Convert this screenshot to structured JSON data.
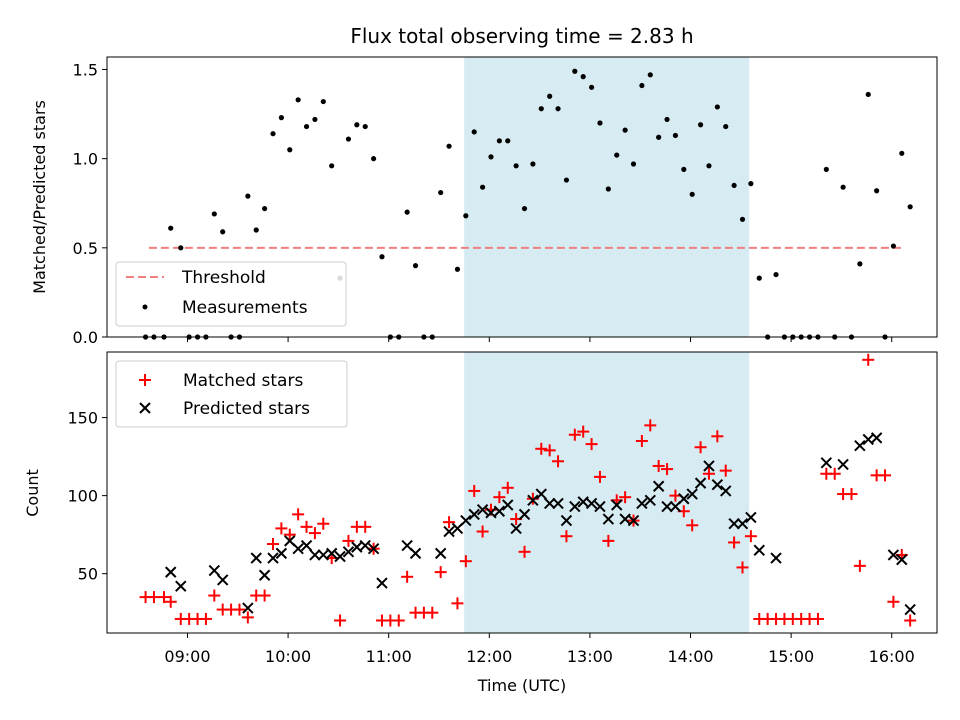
{
  "chart_data": [
    {
      "type": "scatter",
      "title": "Flux total observing time = 2.83 h",
      "xlabel": "",
      "ylabel": "Matched/Predicted stars",
      "ylim": [
        0,
        1.57
      ],
      "yticks": [
        0.0,
        0.5,
        1.0,
        1.5
      ],
      "ytick_labels": [
        "0.0",
        "0.5",
        "1.0",
        "1.5"
      ],
      "xlim": [
        "08:12",
        "16:27"
      ],
      "xticks": [
        "09:00",
        "10:00",
        "11:00",
        "12:00",
        "13:00",
        "14:00",
        "15:00",
        "16:00"
      ],
      "shaded_interval": [
        "11:45",
        "14:35"
      ],
      "threshold": {
        "name": "Threshold",
        "value": 0.5,
        "x_range": [
          "08:37",
          "16:07"
        ],
        "color": "#f08080"
      },
      "legend_placement": "bottom-left",
      "series": [
        {
          "name": "Measurements",
          "color": "#000000",
          "points": [
            [
              "08:35",
              0.0
            ],
            [
              "08:40",
              0.0
            ],
            [
              "08:46",
              0.0
            ],
            [
              "08:50",
              0.61
            ],
            [
              "08:56",
              0.5
            ],
            [
              "09:01",
              0.0
            ],
            [
              "09:06",
              0.0
            ],
            [
              "09:11",
              0.0
            ],
            [
              "09:16",
              0.69
            ],
            [
              "09:21",
              0.59
            ],
            [
              "09:26",
              0.0
            ],
            [
              "09:31",
              0.0
            ],
            [
              "09:36",
              0.79
            ],
            [
              "09:41",
              0.6
            ],
            [
              "09:46",
              0.72
            ],
            [
              "09:51",
              1.14
            ],
            [
              "09:56",
              1.23
            ],
            [
              "10:01",
              1.05
            ],
            [
              "10:06",
              1.33
            ],
            [
              "10:11",
              1.18
            ],
            [
              "10:16",
              1.22
            ],
            [
              "10:21",
              1.32
            ],
            [
              "10:26",
              0.96
            ],
            [
              "10:31",
              0.33
            ],
            [
              "10:36",
              1.11
            ],
            [
              "10:41",
              1.19
            ],
            [
              "10:46",
              1.18
            ],
            [
              "10:51",
              1.0
            ],
            [
              "10:56",
              0.45
            ],
            [
              "11:01",
              0.0
            ],
            [
              "11:06",
              0.0
            ],
            [
              "11:11",
              0.7
            ],
            [
              "11:16",
              0.4
            ],
            [
              "11:21",
              0.0
            ],
            [
              "11:26",
              0.0
            ],
            [
              "11:31",
              0.81
            ],
            [
              "11:36",
              1.07
            ],
            [
              "11:41",
              0.38
            ],
            [
              "11:46",
              0.68
            ],
            [
              "11:51",
              1.15
            ],
            [
              "11:56",
              0.84
            ],
            [
              "12:01",
              1.01
            ],
            [
              "12:06",
              1.1
            ],
            [
              "12:11",
              1.1
            ],
            [
              "12:16",
              0.96
            ],
            [
              "12:21",
              0.72
            ],
            [
              "12:26",
              0.97
            ],
            [
              "12:31",
              1.28
            ],
            [
              "12:36",
              1.35
            ],
            [
              "12:41",
              1.28
            ],
            [
              "12:46",
              0.88
            ],
            [
              "12:51",
              1.49
            ],
            [
              "12:56",
              1.46
            ],
            [
              "13:01",
              1.4
            ],
            [
              "13:06",
              1.2
            ],
            [
              "13:11",
              0.83
            ],
            [
              "13:16",
              1.02
            ],
            [
              "13:21",
              1.16
            ],
            [
              "13:26",
              0.97
            ],
            [
              "13:31",
              1.41
            ],
            [
              "13:36",
              1.47
            ],
            [
              "13:41",
              1.12
            ],
            [
              "13:46",
              1.22
            ],
            [
              "13:51",
              1.13
            ],
            [
              "13:56",
              0.94
            ],
            [
              "14:01",
              0.8
            ],
            [
              "14:06",
              1.19
            ],
            [
              "14:11",
              0.96
            ],
            [
              "14:16",
              1.29
            ],
            [
              "14:21",
              1.18
            ],
            [
              "14:26",
              0.85
            ],
            [
              "14:31",
              0.66
            ],
            [
              "14:36",
              0.86
            ],
            [
              "14:41",
              0.33
            ],
            [
              "14:46",
              0.0
            ],
            [
              "14:51",
              0.35
            ],
            [
              "14:56",
              0.0
            ],
            [
              "15:01",
              0.0
            ],
            [
              "15:06",
              0.0
            ],
            [
              "15:11",
              0.0
            ],
            [
              "15:16",
              0.0
            ],
            [
              "15:21",
              0.94
            ],
            [
              "15:26",
              0.0
            ],
            [
              "15:31",
              0.84
            ],
            [
              "15:36",
              0.0
            ],
            [
              "15:41",
              0.41
            ],
            [
              "15:46",
              1.36
            ],
            [
              "15:51",
              0.82
            ],
            [
              "15:56",
              0.0
            ],
            [
              "16:01",
              0.51
            ],
            [
              "16:06",
              1.03
            ],
            [
              "16:11",
              0.73
            ]
          ]
        }
      ]
    },
    {
      "type": "scatter",
      "title": "",
      "xlabel": "Time (UTC)",
      "ylabel": "Count",
      "ylim": [
        12,
        192
      ],
      "yticks": [
        50,
        100,
        150
      ],
      "ytick_labels": [
        "50",
        "100",
        "150"
      ],
      "xlim": [
        "08:12",
        "16:27"
      ],
      "xticks": [
        "09:00",
        "10:00",
        "11:00",
        "12:00",
        "13:00",
        "14:00",
        "15:00",
        "16:00"
      ],
      "xtick_labels": [
        "09:00",
        "10:00",
        "11:00",
        "12:00",
        "13:00",
        "14:00",
        "15:00",
        "16:00"
      ],
      "shaded_interval": [
        "11:45",
        "14:35"
      ],
      "legend_placement": "top-left",
      "series": [
        {
          "name": "Matched stars",
          "marker": "+",
          "color": "#ff0000",
          "points": [
            [
              "08:35",
              35
            ],
            [
              "08:40",
              35
            ],
            [
              "08:46",
              35
            ],
            [
              "08:50",
              32
            ],
            [
              "08:56",
              21
            ],
            [
              "09:01",
              21
            ],
            [
              "09:06",
              21
            ],
            [
              "09:11",
              21
            ],
            [
              "09:16",
              36
            ],
            [
              "09:21",
              27
            ],
            [
              "09:26",
              27
            ],
            [
              "09:31",
              27
            ],
            [
              "09:36",
              22
            ],
            [
              "09:41",
              36
            ],
            [
              "09:46",
              36
            ],
            [
              "09:51",
              69
            ],
            [
              "09:56",
              79
            ],
            [
              "10:01",
              75
            ],
            [
              "10:06",
              88
            ],
            [
              "10:11",
              80
            ],
            [
              "10:16",
              76
            ],
            [
              "10:21",
              82
            ],
            [
              "10:26",
              60
            ],
            [
              "10:31",
              20
            ],
            [
              "10:36",
              71
            ],
            [
              "10:41",
              80
            ],
            [
              "10:46",
              80
            ],
            [
              "10:51",
              66
            ],
            [
              "10:56",
              20
            ],
            [
              "11:01",
              20
            ],
            [
              "11:06",
              20
            ],
            [
              "11:11",
              48
            ],
            [
              "11:16",
              25
            ],
            [
              "11:21",
              25
            ],
            [
              "11:26",
              25
            ],
            [
              "11:31",
              51
            ],
            [
              "11:36",
              83
            ],
            [
              "11:41",
              31
            ],
            [
              "11:46",
              58
            ],
            [
              "11:51",
              103
            ],
            [
              "11:56",
              77
            ],
            [
              "12:01",
              91
            ],
            [
              "12:06",
              99
            ],
            [
              "12:11",
              105
            ],
            [
              "12:16",
              85
            ],
            [
              "12:21",
              64
            ],
            [
              "12:26",
              98
            ],
            [
              "12:31",
              130
            ],
            [
              "12:36",
              129
            ],
            [
              "12:41",
              122
            ],
            [
              "12:46",
              74
            ],
            [
              "12:51",
              139
            ],
            [
              "12:56",
              141
            ],
            [
              "13:01",
              133
            ],
            [
              "13:06",
              112
            ],
            [
              "13:11",
              71
            ],
            [
              "13:16",
              97
            ],
            [
              "13:21",
              99
            ],
            [
              "13:26",
              84
            ],
            [
              "13:31",
              135
            ],
            [
              "13:36",
              145
            ],
            [
              "13:41",
              119
            ],
            [
              "13:46",
              117
            ],
            [
              "13:51",
              100
            ],
            [
              "13:56",
              90
            ],
            [
              "14:01",
              81
            ],
            [
              "14:06",
              131
            ],
            [
              "14:11",
              114
            ],
            [
              "14:16",
              138
            ],
            [
              "14:21",
              116
            ],
            [
              "14:26",
              70
            ],
            [
              "14:31",
              54
            ],
            [
              "14:36",
              74
            ],
            [
              "14:41",
              21
            ],
            [
              "14:46",
              21
            ],
            [
              "14:51",
              21
            ],
            [
              "14:56",
              21
            ],
            [
              "15:01",
              21
            ],
            [
              "15:06",
              21
            ],
            [
              "15:11",
              21
            ],
            [
              "15:16",
              21
            ],
            [
              "15:21",
              114
            ],
            [
              "15:26",
              114
            ],
            [
              "15:31",
              101
            ],
            [
              "15:36",
              101
            ],
            [
              "15:41",
              55
            ],
            [
              "15:46",
              187
            ],
            [
              "15:51",
              113
            ],
            [
              "15:56",
              113
            ],
            [
              "16:01",
              32
            ],
            [
              "16:06",
              62
            ],
            [
              "16:11",
              20
            ]
          ]
        },
        {
          "name": "Predicted stars",
          "marker": "x",
          "color": "#000000",
          "points": [
            [
              "08:50",
              51
            ],
            [
              "08:56",
              42
            ],
            [
              "09:16",
              52
            ],
            [
              "09:21",
              46
            ],
            [
              "09:36",
              28
            ],
            [
              "09:41",
              60
            ],
            [
              "09:46",
              49
            ],
            [
              "09:51",
              60
            ],
            [
              "09:56",
              63
            ],
            [
              "10:01",
              71
            ],
            [
              "10:06",
              66
            ],
            [
              "10:11",
              68
            ],
            [
              "10:16",
              62
            ],
            [
              "10:21",
              62
            ],
            [
              "10:26",
              63
            ],
            [
              "10:31",
              61
            ],
            [
              "10:36",
              64
            ],
            [
              "10:41",
              67
            ],
            [
              "10:46",
              68
            ],
            [
              "10:51",
              66
            ],
            [
              "10:56",
              44
            ],
            [
              "11:11",
              68
            ],
            [
              "11:16",
              63
            ],
            [
              "11:31",
              63
            ],
            [
              "11:36",
              77
            ],
            [
              "11:41",
              79
            ],
            [
              "11:46",
              84
            ],
            [
              "11:51",
              88
            ],
            [
              "11:56",
              91
            ],
            [
              "12:01",
              89
            ],
            [
              "12:06",
              90
            ],
            [
              "12:11",
              94
            ],
            [
              "12:16",
              79
            ],
            [
              "12:21",
              88
            ],
            [
              "12:26",
              97
            ],
            [
              "12:31",
              101
            ],
            [
              "12:36",
              95
            ],
            [
              "12:41",
              95
            ],
            [
              "12:46",
              84
            ],
            [
              "12:51",
              93
            ],
            [
              "12:56",
              96
            ],
            [
              "13:01",
              95
            ],
            [
              "13:06",
              93
            ],
            [
              "13:11",
              85
            ],
            [
              "13:16",
              94
            ],
            [
              "13:21",
              85
            ],
            [
              "13:26",
              84
            ],
            [
              "13:31",
              95
            ],
            [
              "13:36",
              97
            ],
            [
              "13:41",
              106
            ],
            [
              "13:46",
              93
            ],
            [
              "13:51",
              93
            ],
            [
              "13:56",
              98
            ],
            [
              "14:01",
              101
            ],
            [
              "14:06",
              108
            ],
            [
              "14:11",
              119
            ],
            [
              "14:16",
              107
            ],
            [
              "14:21",
              103
            ],
            [
              "14:26",
              82
            ],
            [
              "14:31",
              82
            ],
            [
              "14:36",
              86
            ],
            [
              "14:41",
              65
            ],
            [
              "14:51",
              60
            ],
            [
              "15:21",
              121
            ],
            [
              "15:31",
              120
            ],
            [
              "15:41",
              132
            ],
            [
              "15:46",
              136
            ],
            [
              "15:51",
              137
            ],
            [
              "16:01",
              62
            ],
            [
              "16:06",
              59
            ],
            [
              "16:11",
              27
            ]
          ]
        }
      ]
    }
  ]
}
